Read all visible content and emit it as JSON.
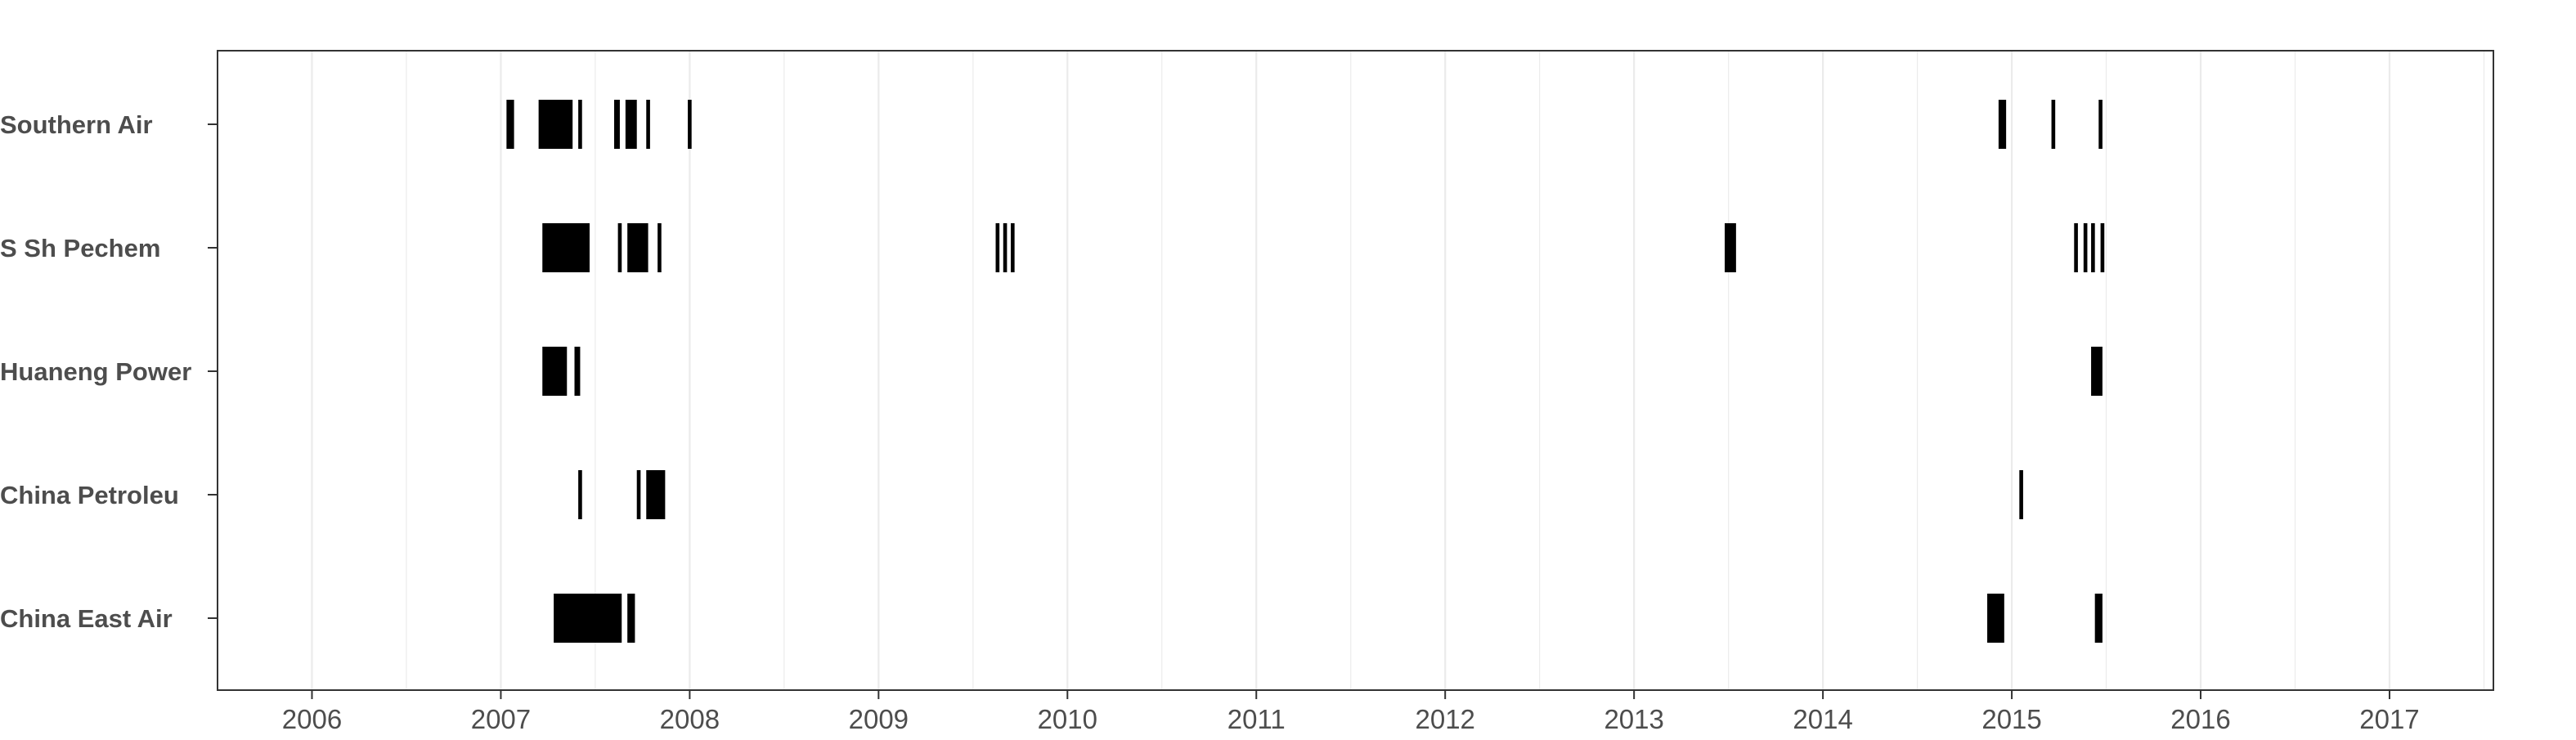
{
  "chart_data": {
    "type": "timeline",
    "title": "",
    "xlabel": "",
    "ylabel": "",
    "xlim": [
      2005.5,
      2017.55
    ],
    "x_ticks": [
      2006,
      2007,
      2008,
      2009,
      2010,
      2011,
      2012,
      2013,
      2014,
      2015,
      2016,
      2017
    ],
    "x_tick_labels": [
      "2006",
      "2007",
      "2008",
      "2009",
      "2010",
      "2011",
      "2012",
      "2013",
      "2014",
      "2015",
      "2016",
      "2017"
    ],
    "grid": true,
    "legend": "none",
    "bar_color": "#000000",
    "grid_color": "#ebebeb",
    "series": [
      {
        "name": "Southern Air",
        "intervals": [
          [
            2007.03,
            2007.07
          ],
          [
            2007.2,
            2007.38
          ],
          [
            2007.41,
            2007.43
          ],
          [
            2007.6,
            2007.63
          ],
          [
            2007.66,
            2007.72
          ],
          [
            2007.77,
            2007.79
          ],
          [
            2007.99,
            2008.01
          ],
          [
            2014.93,
            2014.97
          ],
          [
            2015.21,
            2015.23
          ],
          [
            2015.46,
            2015.48
          ]
        ]
      },
      {
        "name": "S Sh Pechem",
        "intervals": [
          [
            2007.22,
            2007.47
          ],
          [
            2007.62,
            2007.64
          ],
          [
            2007.67,
            2007.78
          ],
          [
            2007.83,
            2007.85
          ],
          [
            2009.62,
            2009.64
          ],
          [
            2009.66,
            2009.68
          ],
          [
            2009.7,
            2009.72
          ],
          [
            2013.48,
            2013.54
          ],
          [
            2015.33,
            2015.35
          ],
          [
            2015.38,
            2015.4
          ],
          [
            2015.42,
            2015.44
          ],
          [
            2015.47,
            2015.49
          ]
        ]
      },
      {
        "name": "Huaneng Power",
        "intervals": [
          [
            2007.22,
            2007.35
          ],
          [
            2007.39,
            2007.42
          ],
          [
            2015.42,
            2015.48
          ]
        ]
      },
      {
        "name": "China Petroleu",
        "intervals": [
          [
            2007.41,
            2007.43
          ],
          [
            2007.72,
            2007.74
          ],
          [
            2007.77,
            2007.87
          ],
          [
            2015.04,
            2015.06
          ]
        ]
      },
      {
        "name": "China East Air",
        "intervals": [
          [
            2007.28,
            2007.64
          ],
          [
            2007.67,
            2007.71
          ],
          [
            2014.87,
            2014.96
          ],
          [
            2015.44,
            2015.48
          ]
        ]
      }
    ]
  }
}
